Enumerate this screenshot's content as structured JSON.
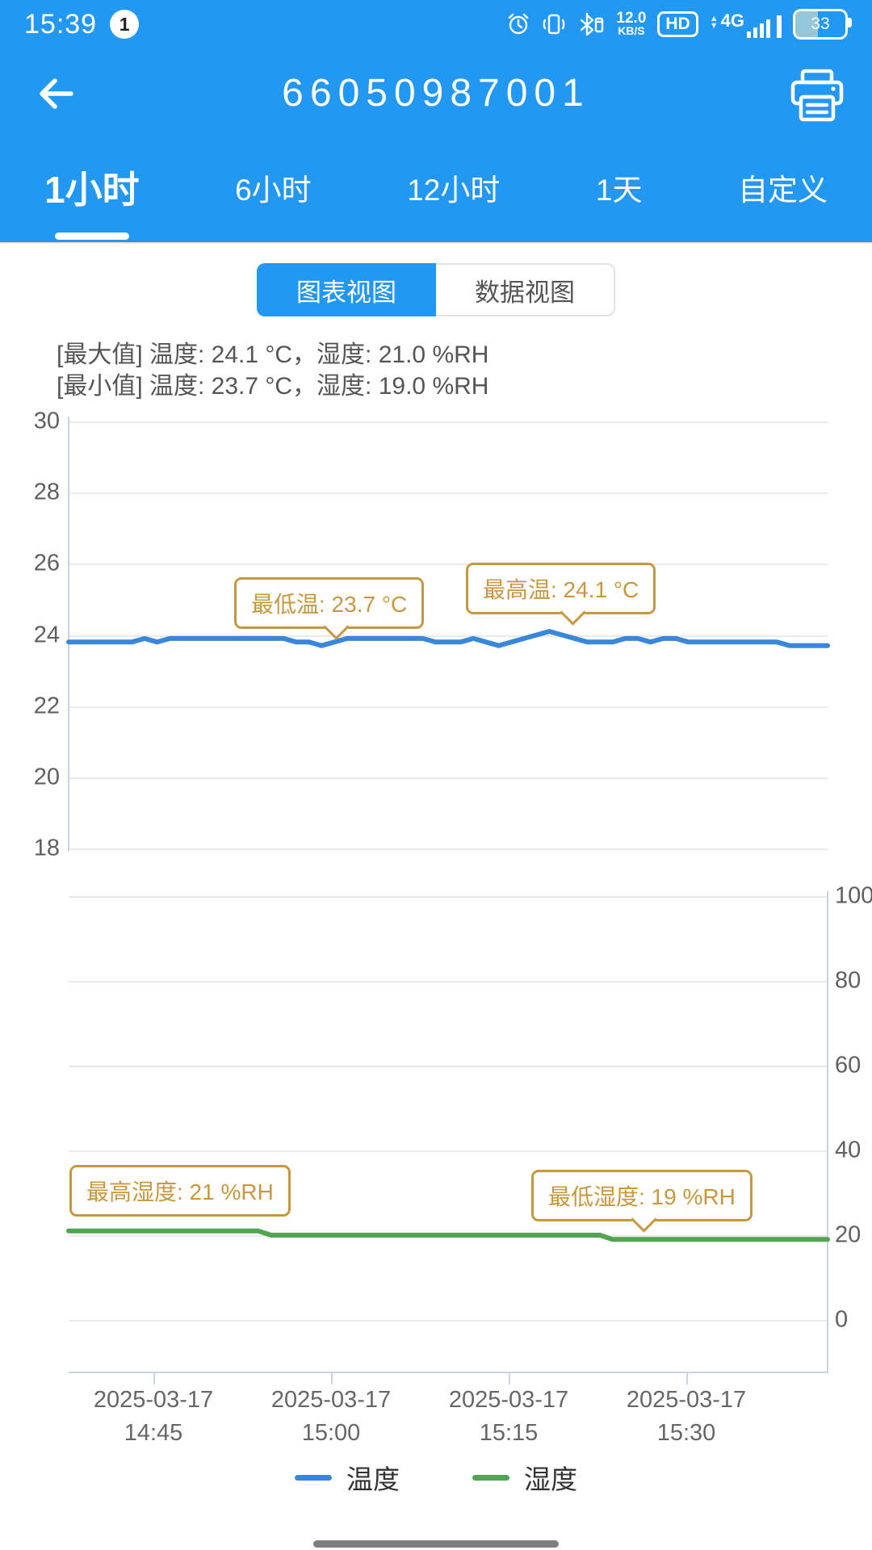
{
  "status_bar": {
    "time": "15:39",
    "notification_count": "1",
    "network_speed_value": "12.0",
    "network_speed_unit": "KB/S",
    "hd_label": "HD",
    "network_type": "4G",
    "battery_percent": "33",
    "icons": [
      "alarm",
      "vibrate",
      "bluetooth",
      "network-speed",
      "hd",
      "signal-4g",
      "battery"
    ]
  },
  "header": {
    "title": "66050987001"
  },
  "tabs": [
    {
      "label": "1小时",
      "active": true
    },
    {
      "label": "6小时",
      "active": false
    },
    {
      "label": "12小时",
      "active": false
    },
    {
      "label": "1天",
      "active": false
    },
    {
      "label": "自定义",
      "active": false
    }
  ],
  "view_toggle": {
    "chart_label": "图表视图",
    "data_label": "数据视图",
    "selected": "图表视图"
  },
  "stats": {
    "max_line": "[最大值] 温度: 24.1 °C，湿度: 21.0 %RH",
    "min_line": "[最小值] 温度: 23.7 °C，湿度: 19.0 %RH"
  },
  "annotations": {
    "temp_min": "最低温: 23.7 °C",
    "temp_max": "最高温: 24.1 °C",
    "hum_max": "最高湿度: 21 %RH",
    "hum_min": "最低湿度: 19 %RH"
  },
  "legend": [
    {
      "name": "温度",
      "color": "#3a87da"
    },
    {
      "name": "湿度",
      "color": "#52a352"
    }
  ],
  "colors": {
    "accent_blue": "#2298f2",
    "temp_line": "#3a87da",
    "hum_line": "#52a352",
    "annotation_gold": "#c7983f",
    "grid": "#ebebeb",
    "axis": "#c8d4e2"
  },
  "x_axis": {
    "labels": [
      {
        "date": "2025-03-17",
        "time": "14:45"
      },
      {
        "date": "2025-03-17",
        "time": "15:00"
      },
      {
        "date": "2025-03-17",
        "time": "15:15"
      },
      {
        "date": "2025-03-17",
        "time": "15:30"
      }
    ]
  },
  "chart_data": [
    {
      "type": "line",
      "title": "温度 (temperature)",
      "ylabel": "°C",
      "ylim": [
        18,
        30
      ],
      "yticks": [
        30,
        28,
        26,
        24,
        22,
        20,
        18
      ],
      "grid": true,
      "legend_position": "bottom",
      "x_window_minutes": 60,
      "max": 24.1,
      "min": 23.7,
      "series": [
        {
          "name": "温度",
          "color": "#3a87da",
          "values": [
            23.8,
            23.8,
            23.8,
            23.8,
            23.8,
            23.8,
            23.9,
            23.8,
            23.9,
            23.9,
            23.9,
            23.9,
            23.9,
            23.9,
            23.9,
            23.9,
            23.9,
            23.9,
            23.8,
            23.8,
            23.7,
            23.8,
            23.9,
            23.9,
            23.9,
            23.9,
            23.9,
            23.9,
            23.9,
            23.8,
            23.8,
            23.8,
            23.9,
            23.8,
            23.7,
            23.8,
            23.9,
            24.0,
            24.1,
            24.0,
            23.9,
            23.8,
            23.8,
            23.8,
            23.9,
            23.9,
            23.8,
            23.9,
            23.9,
            23.8,
            23.8,
            23.8,
            23.8,
            23.8,
            23.8,
            23.8,
            23.8,
            23.7,
            23.7,
            23.7,
            23.7
          ]
        }
      ]
    },
    {
      "type": "line",
      "title": "湿度 (humidity)",
      "ylabel": "%RH",
      "ylim": [
        0,
        100
      ],
      "yticks": [
        100,
        80,
        60,
        40,
        20,
        0
      ],
      "grid": true,
      "legend_position": "bottom",
      "x_window_minutes": 60,
      "max": 21.0,
      "min": 19.0,
      "series": [
        {
          "name": "湿度",
          "color": "#52a352",
          "values": [
            21,
            21,
            21,
            21,
            21,
            21,
            21,
            21,
            21,
            21,
            21,
            21,
            21,
            21,
            21,
            21,
            20,
            20,
            20,
            20,
            20,
            20,
            20,
            20,
            20,
            20,
            20,
            20,
            20,
            20,
            20,
            20,
            20,
            20,
            20,
            20,
            20,
            20,
            20,
            20,
            20,
            20,
            20,
            19,
            19,
            19,
            19,
            19,
            19,
            19,
            19,
            19,
            19,
            19,
            19,
            19,
            19,
            19,
            19,
            19,
            19
          ]
        }
      ]
    }
  ]
}
